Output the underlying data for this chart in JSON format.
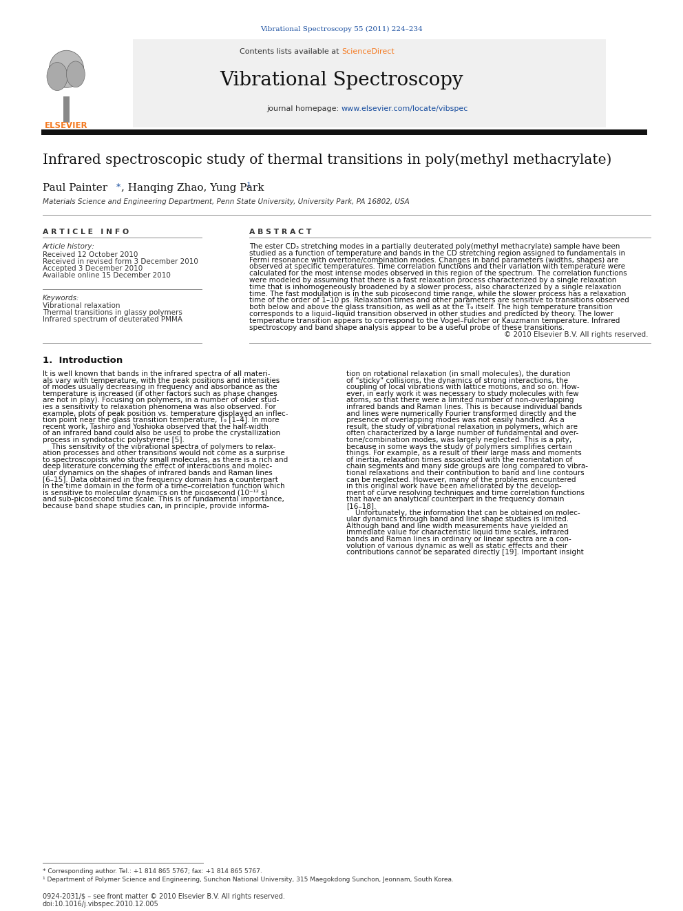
{
  "page_width": 9.92,
  "page_height": 13.23,
  "bg_color": "#ffffff",
  "journal_ref": "Vibrational Spectroscopy 55 (2011) 224–234",
  "journal_ref_color": "#1a4fa0",
  "contents_text": "Contents lists available at ",
  "sciencedirect_text": "ScienceDirect",
  "sciencedirect_color": "#f47920",
  "journal_title": "Vibrational Spectroscopy",
  "journal_homepage_prefix": "journal homepage: ",
  "journal_homepage_url": "www.elsevier.com/locate/vibspec",
  "journal_homepage_url_color": "#1a4fa0",
  "header_bg": "#f0f0f0",
  "thick_bar_color": "#1a1a1a",
  "paper_title": "Infrared spectroscopic study of thermal transitions in poly(methyl methacrylate)",
  "author_star_color": "#1a4fa0",
  "affiliation": "Materials Science and Engineering Department, Penn State University, University Park, PA 16802, USA",
  "article_info_header": "A R T I C L E   I N F O",
  "abstract_header": "A B S T R A C T",
  "article_history_label": "Article history:",
  "received1": "Received 12 October 2010",
  "received2": "Received in revised form 3 December 2010",
  "accepted": "Accepted 3 December 2010",
  "available": "Available online 15 December 2010",
  "keywords_label": "Keywords:",
  "keyword1": "Vibrational relaxation",
  "keyword2": "Thermal transitions in glassy polymers",
  "keyword3": "Infrared spectrum of deuterated PMMA",
  "copyright": "© 2010 Elsevier B.V. All rights reserved.",
  "intro_heading": "1.  Introduction",
  "footnote1": "* Corresponding author. Tel.: +1 814 865 5767; fax: +1 814 865 5767.",
  "footnote2": "¹ Department of Polymer Science and Engineering, Sunchon National University, 315 Maegokdong Sunchon, Jeonnam, South Korea.",
  "footer_issn": "0924-2031/$ – see front matter © 2010 Elsevier B.V. All rights reserved.",
  "footer_doi": "doi:10.1016/j.vibspec.2010.12.005"
}
